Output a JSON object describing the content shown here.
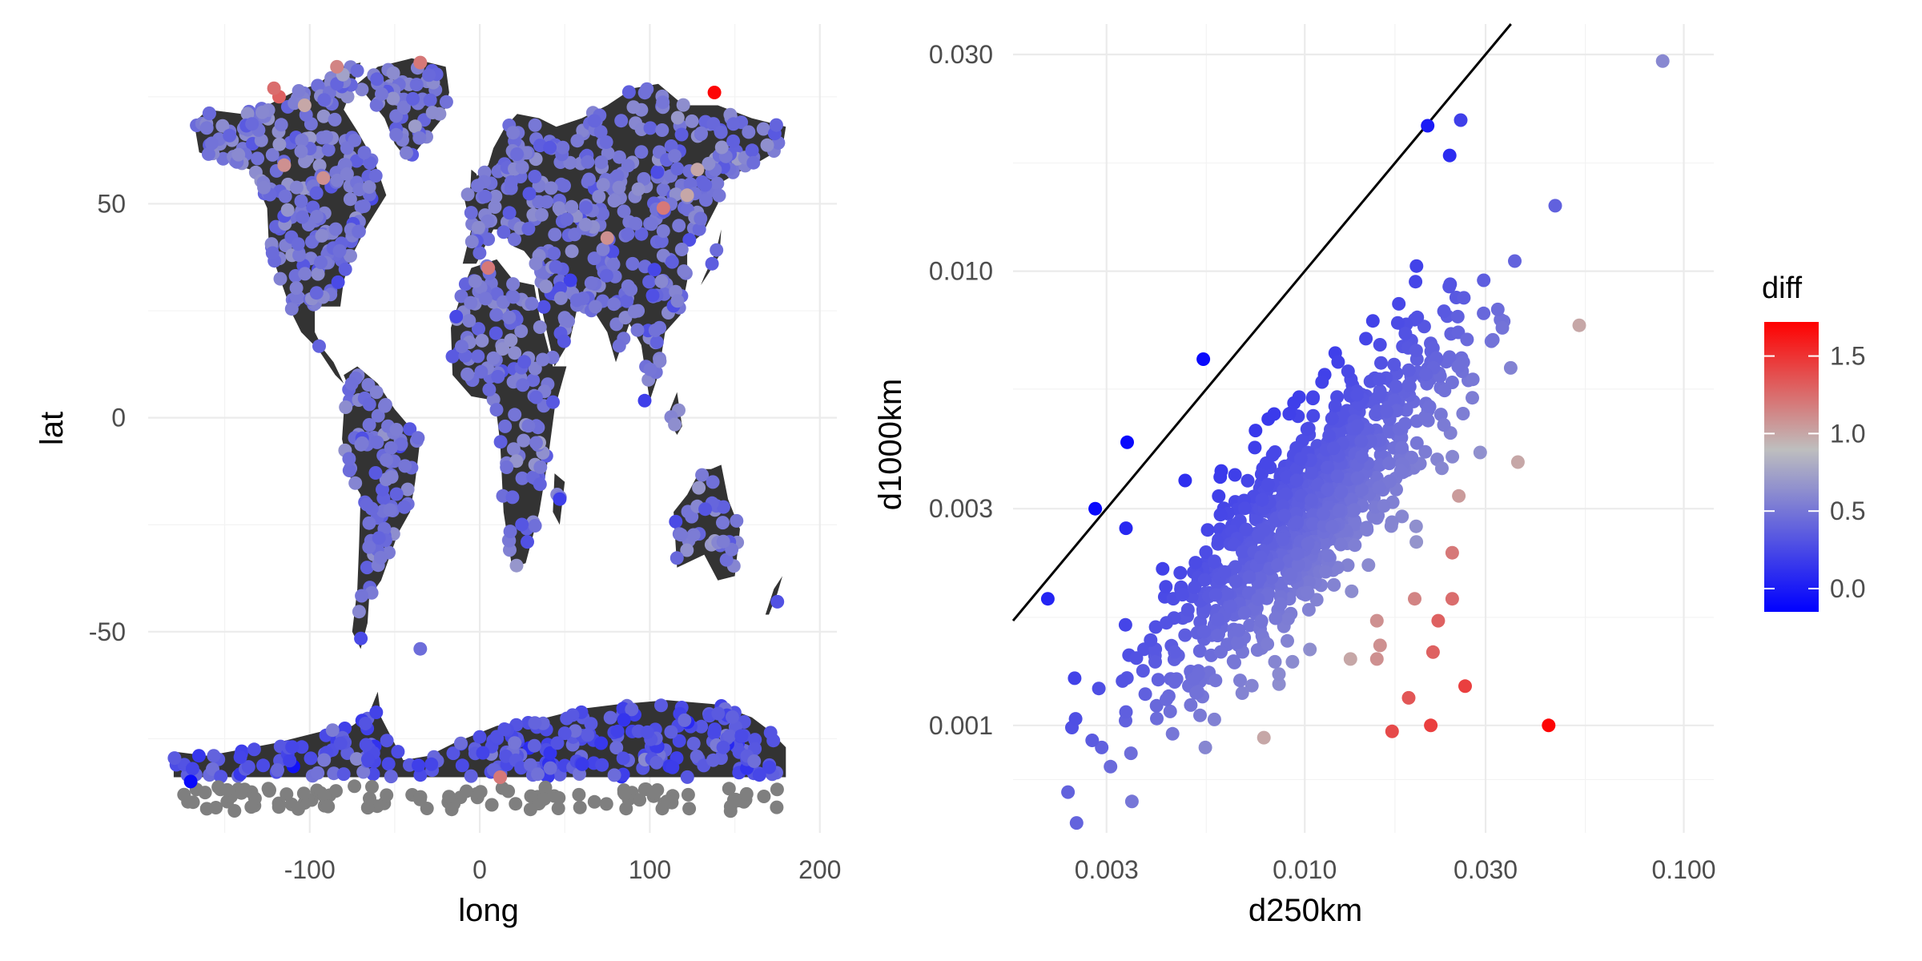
{
  "chart_data": [
    {
      "type": "scatter",
      "panel": "left",
      "xlabel": "long",
      "ylabel": "lat",
      "xlim": [
        -195,
        210
      ],
      "ylim": [
        -97,
        92
      ],
      "x_ticks": [
        -100,
        0,
        100,
        200
      ],
      "x_tick_labels": [
        "-100",
        "0",
        "100",
        "200"
      ],
      "y_ticks": [
        -50,
        0,
        50
      ],
      "y_tick_labels": [
        "-50",
        "0",
        "50"
      ],
      "background_landmass_color": "#333333",
      "grid": true,
      "highlight_points": [
        {
          "x": 138,
          "y": 76,
          "diff": 1.7
        },
        {
          "x": -35,
          "y": 83,
          "diff": 1.2
        },
        {
          "x": -84,
          "y": 82,
          "diff": 1.15
        },
        {
          "x": -118,
          "y": 75,
          "diff": 1.3
        },
        {
          "x": -121,
          "y": 77,
          "diff": 1.25
        },
        {
          "x": -103,
          "y": 73,
          "diff": 1.0
        },
        {
          "x": 5,
          "y": 35,
          "diff": 1.2
        },
        {
          "x": 108,
          "y": 49,
          "diff": 1.2
        },
        {
          "x": 122,
          "y": 52,
          "diff": 1.0
        },
        {
          "x": 75,
          "y": 42,
          "diff": 1.1
        },
        {
          "x": -92,
          "y": 56,
          "diff": 1.1
        },
        {
          "x": -115,
          "y": 59,
          "diff": 1.1
        },
        {
          "x": 12,
          "y": -84,
          "diff": 1.2
        },
        {
          "x": 128,
          "y": 58,
          "diff": 1.0
        },
        {
          "x": -170,
          "y": -85,
          "diff": -0.1
        },
        {
          "x": -35,
          "y": -54,
          "diff": 0.45
        },
        {
          "x": 175,
          "y": -43,
          "diff": 0.3
        },
        {
          "x": 47,
          "y": -19,
          "diff": 0.2
        },
        {
          "x": 97,
          "y": 4,
          "diff": 0.2
        },
        {
          "x": 28,
          "y": -29,
          "diff": 0.3
        }
      ]
    },
    {
      "type": "scatter",
      "panel": "right",
      "xlabel": "d250km",
      "ylabel": "d1000km",
      "x_scale": "log10",
      "y_scale": "log10",
      "xlim": [
        0.0017,
        0.12
      ],
      "ylim": [
        0.00058,
        0.035
      ],
      "x_ticks": [
        0.003,
        0.01,
        0.03,
        0.1
      ],
      "x_tick_labels": [
        "0.003",
        "0.010",
        "0.030",
        "0.100"
      ],
      "y_ticks": [
        0.001,
        0.003,
        0.01,
        0.03
      ],
      "y_tick_labels": [
        "0.001",
        "0.003",
        "0.010",
        "0.030"
      ],
      "reference_line": {
        "intercept": 0,
        "slope": 1,
        "color": "#000000"
      },
      "highlight_points": [
        {
          "x": 0.088,
          "y": 0.029,
          "diff": 0.6
        },
        {
          "x": 0.0211,
          "y": 0.0209,
          "diff": 0.0
        },
        {
          "x": 0.0258,
          "y": 0.0215,
          "diff": 0.2
        },
        {
          "x": 0.0054,
          "y": 0.0064,
          "diff": -0.1
        },
        {
          "x": 0.0034,
          "y": 0.0042,
          "diff": -0.1
        },
        {
          "x": 0.0028,
          "y": 0.003,
          "diff": -0.1
        },
        {
          "x": 0.0021,
          "y": 0.0019,
          "diff": 0.05
        },
        {
          "x": 0.044,
          "y": 0.001,
          "diff": 1.7
        },
        {
          "x": 0.017,
          "y": 0.00097,
          "diff": 1.4
        },
        {
          "x": 0.0188,
          "y": 0.00115,
          "diff": 1.35
        },
        {
          "x": 0.0215,
          "y": 0.001,
          "diff": 1.45
        },
        {
          "x": 0.0265,
          "y": 0.00122,
          "diff": 1.45
        },
        {
          "x": 0.053,
          "y": 0.0076,
          "diff": 1.0
        },
        {
          "x": 0.0365,
          "y": 0.0038,
          "diff": 1.0
        },
        {
          "x": 0.0245,
          "y": 0.0024,
          "diff": 1.2
        },
        {
          "x": 0.0255,
          "y": 0.0032,
          "diff": 1.05
        },
        {
          "x": 0.0225,
          "y": 0.0017,
          "diff": 1.3
        },
        {
          "x": 0.0245,
          "y": 0.0019,
          "diff": 1.25
        },
        {
          "x": 0.0218,
          "y": 0.00145,
          "diff": 1.3
        },
        {
          "x": 0.0195,
          "y": 0.0019,
          "diff": 1.15
        },
        {
          "x": 0.0155,
          "y": 0.0017,
          "diff": 1.1
        },
        {
          "x": 0.0158,
          "y": 0.0015,
          "diff": 1.1
        },
        {
          "x": 0.0155,
          "y": 0.0014,
          "diff": 1.1
        },
        {
          "x": 0.0132,
          "y": 0.0014,
          "diff": 1.0
        },
        {
          "x": 0.0078,
          "y": 0.00094,
          "diff": 1.0
        },
        {
          "x": 0.0025,
          "y": 0.00061,
          "diff": 0.4
        },
        {
          "x": 0.0035,
          "y": 0.00068,
          "diff": 0.5
        }
      ]
    }
  ],
  "legend": {
    "title": "diff",
    "placement": "right",
    "range": [
      -0.15,
      1.72
    ],
    "ticks": [
      0.0,
      0.5,
      1.0,
      1.5
    ],
    "tick_labels": [
      "0.0",
      "0.5",
      "1.0",
      "1.5"
    ],
    "colors": {
      "low": "#0000ff",
      "mid": "#bebebe",
      "high": "#ff0000"
    },
    "midpoint": 0.9
  },
  "colors": {
    "land": "#333333",
    "na_points": "#7f7f7f",
    "grid_major": "#ebebeb",
    "grid_minor": "#f3f3f3"
  }
}
